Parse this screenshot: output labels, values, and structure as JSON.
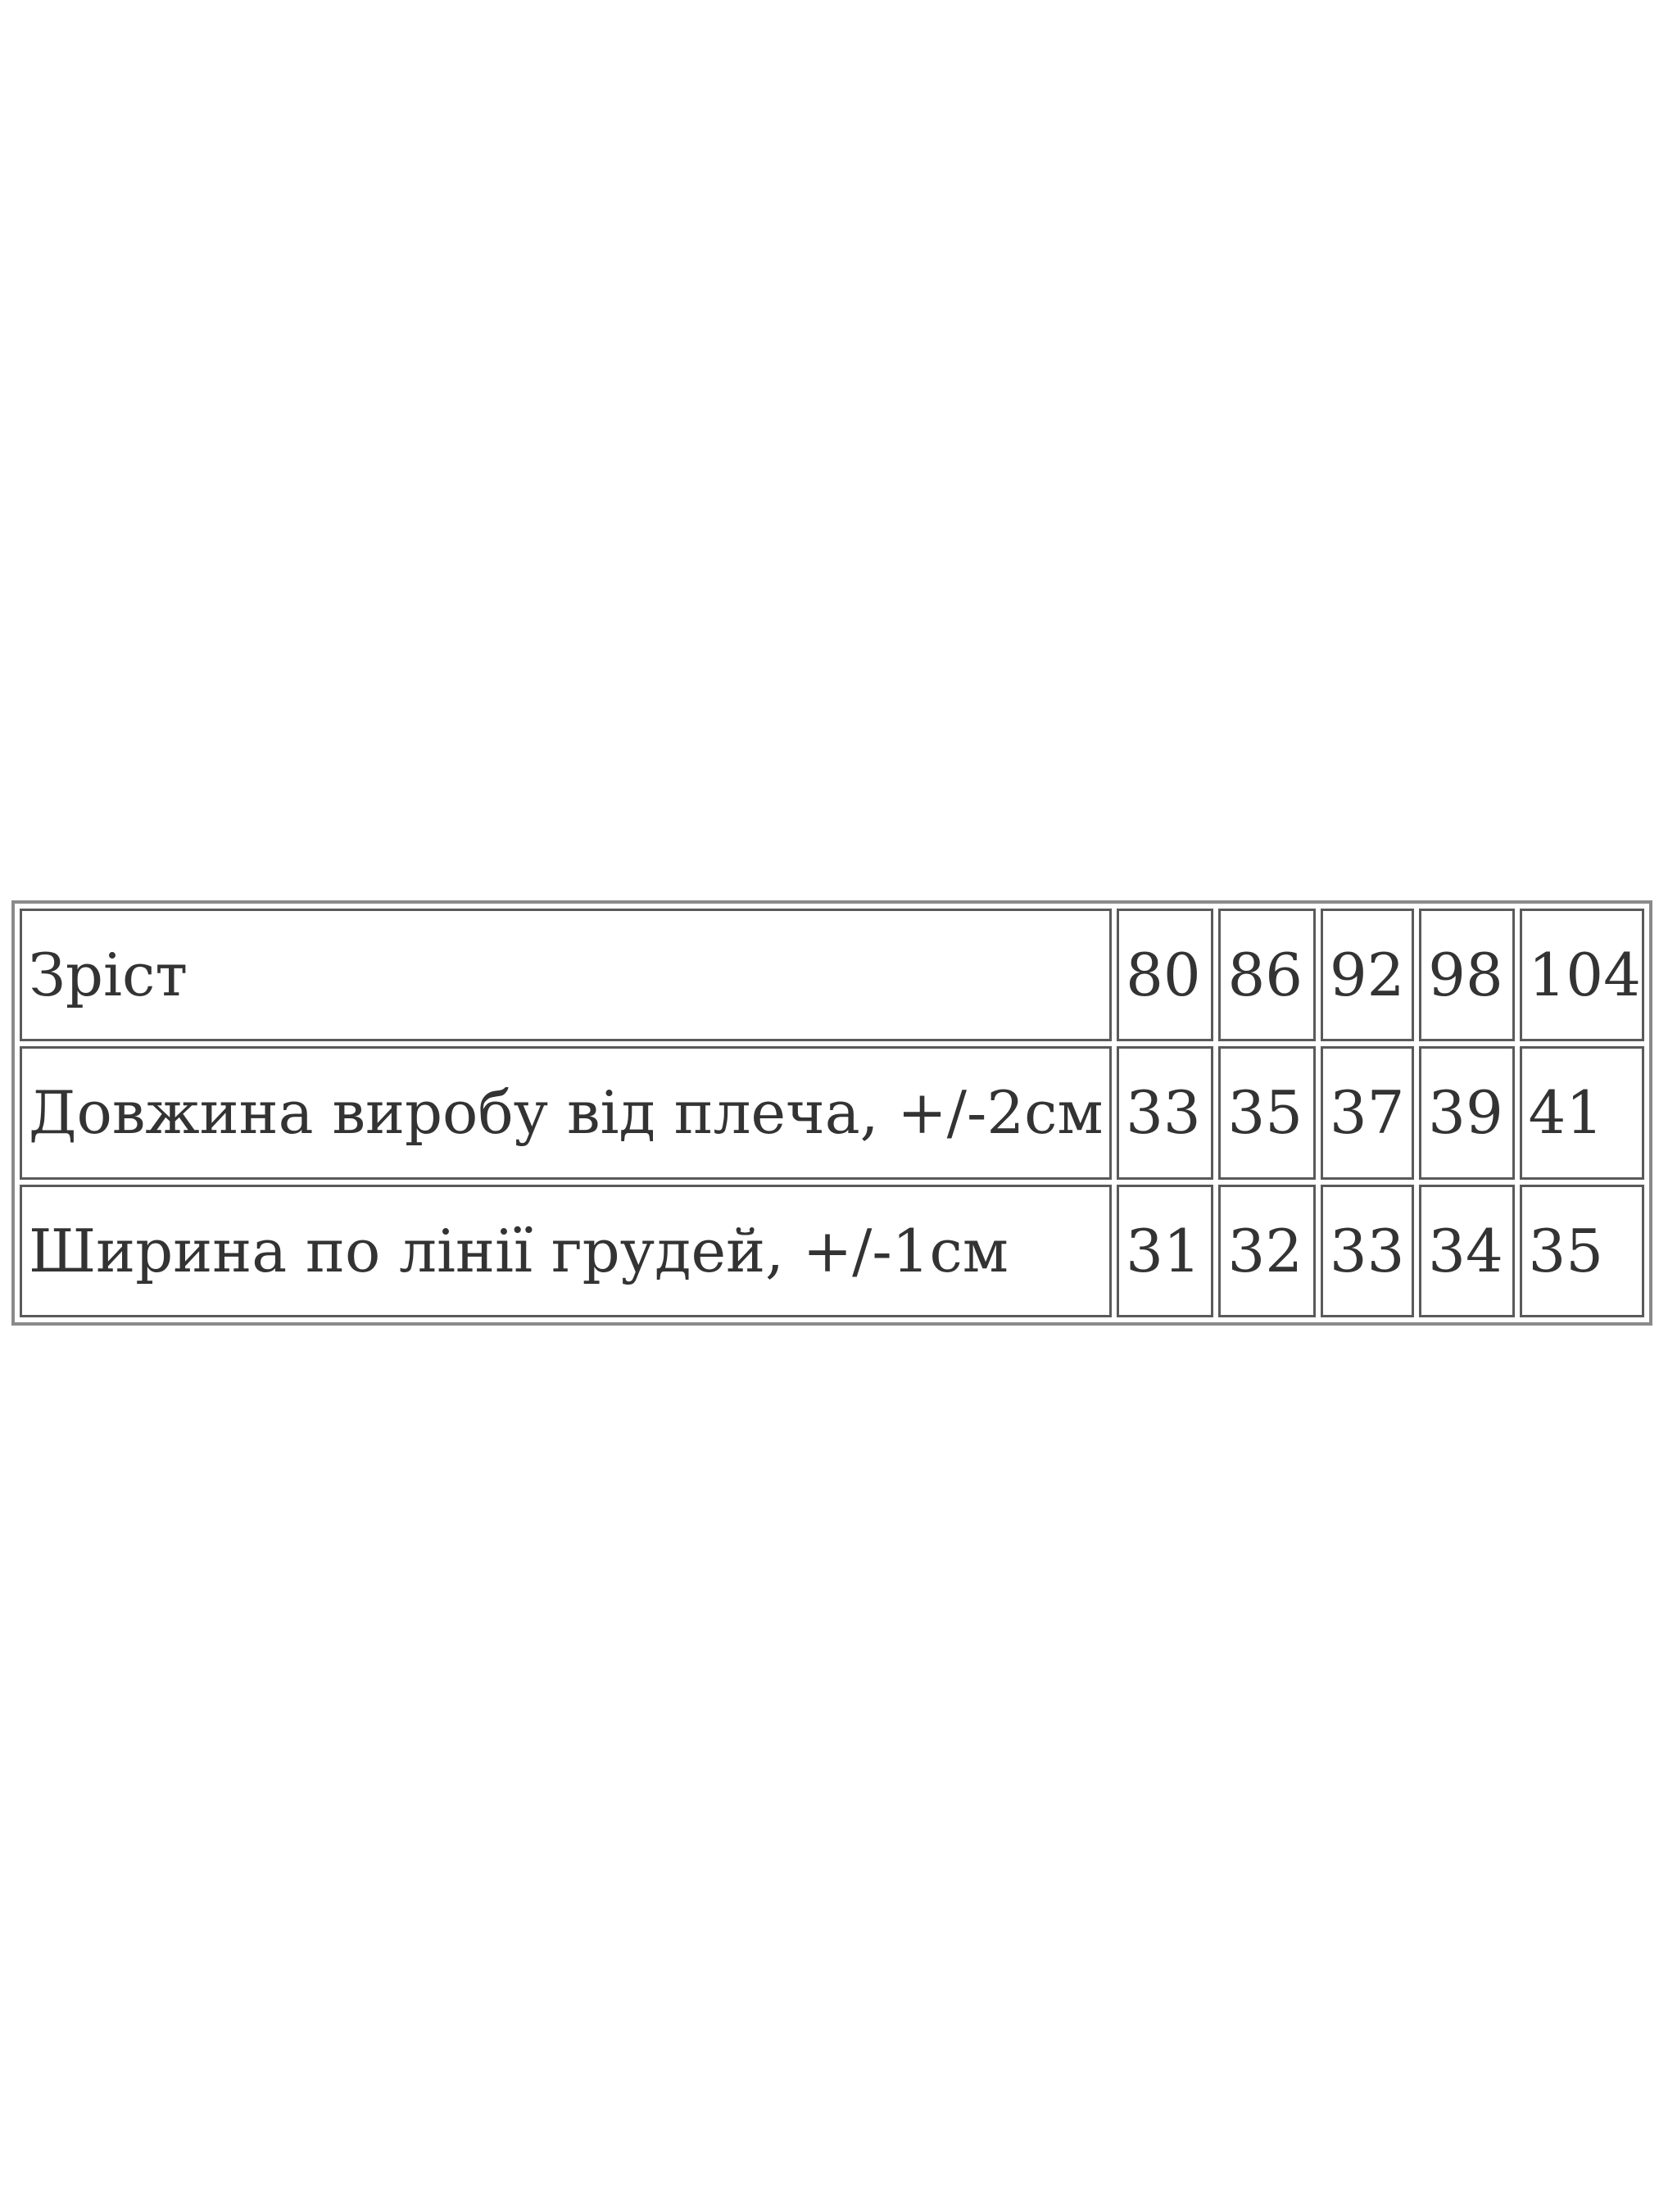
{
  "table": {
    "rows": [
      [
        "Зріст",
        80,
        86,
        92,
        98,
        104
      ],
      [
        "Довжина виробу від плеча, +/-2см",
        33,
        35,
        37,
        39,
        41
      ],
      [
        "Ширина по лінії грудей, +/-1см",
        31,
        32,
        33,
        34,
        35
      ]
    ]
  }
}
